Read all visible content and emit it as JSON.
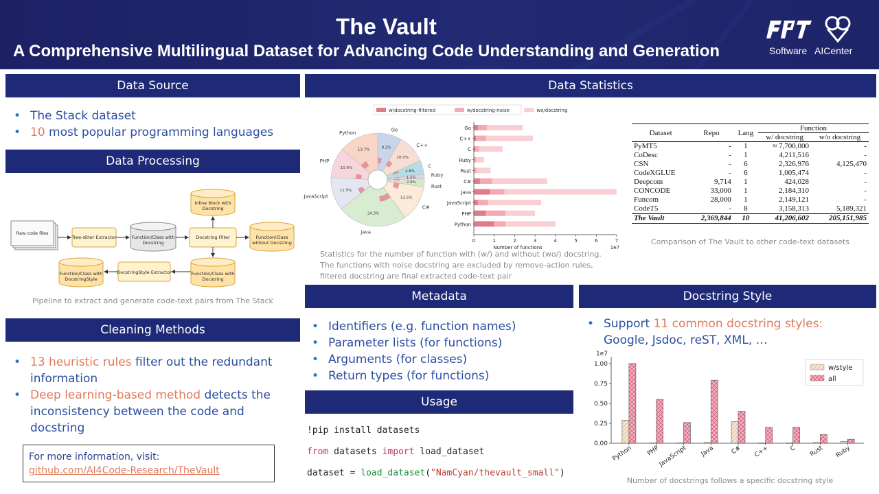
{
  "header": {
    "title": "The Vault",
    "subtitle": "A Comprehensive Multilingual Dataset for Advancing Code Understanding and Generation",
    "logo_fpt": "FPT",
    "logo_fpt_label": "Software",
    "logo_ai_label": "AICenter"
  },
  "data_source": {
    "title": "Data Source",
    "items": [
      {
        "pre": "",
        "hl": "",
        "text": "The Stack dataset"
      },
      {
        "pre": "",
        "hl": "10",
        "text": " most popular programming languages"
      }
    ]
  },
  "data_processing": {
    "title": "Data Processing",
    "nodes": {
      "raw": "Raw code files",
      "treesitter": "Tree-sitter Extractor",
      "func_doc": [
        "Function/Class with",
        "Docstring"
      ],
      "filter": "Docstring Filter",
      "inline": [
        "Inline block with",
        "Docstring"
      ],
      "without": [
        "Function/Class",
        "without Docstring"
      ],
      "func_doc2": [
        "Function/Class with",
        "Docstring"
      ],
      "style_extractor": "DocstringStyle Extractor",
      "func_style": [
        "Function/Class with",
        "DocstringStyle"
      ]
    },
    "caption": "Pipeline to extract and generate code-text pairs from The Stack"
  },
  "cleaning": {
    "title": "Cleaning Methods",
    "items": [
      {
        "hl": "13 heuristic rules",
        "text": " filter out the redundant information"
      },
      {
        "hl": "Deep learning-based method",
        "text": " detects the inconsistency between the code and docstring"
      }
    ]
  },
  "info": {
    "text": "For more information, visit:",
    "link": "github.com/AI4Code-Research/TheVault"
  },
  "data_statistics": {
    "title": "Data Statistics",
    "caption": [
      "Statistics for the number of function with (w/) and without (wo/) docstring.",
      "The functions with noise docstring are excluded by remove-action rules,",
      "filtered docstring are final extracted code-text pair"
    ],
    "table_caption": "Comparison of The Vault to other code-text datasets"
  },
  "chart_data": [
    {
      "type": "pie",
      "categories": [
        "Go",
        "C++",
        "C",
        "Ruby",
        "Rust",
        "C#",
        "Java",
        "JavaScript",
        "PHP",
        "Python"
      ],
      "values": [
        8.3,
        10.0,
        4.8,
        1.5,
        2.9,
        12.5,
        24.3,
        11.5,
        10.6,
        13.7
      ],
      "labels": [
        "8.3%",
        "10.0%",
        "4.8%",
        "1.5%",
        "2.9%",
        "12.5%",
        "24.3%",
        "11.5%",
        "10.6%",
        "13.7%"
      ],
      "colors": [
        "#c9d5ea",
        "#f6ded2",
        "#b7dce3",
        "#e0d2ea",
        "#d8e8c9",
        "#fcebd8",
        "#d8ecd1",
        "#e4e7f2",
        "#f6d6dc",
        "#f8d6c6"
      ]
    },
    {
      "type": "bar",
      "orientation": "horizontal",
      "stacked": true,
      "categories": [
        "Go",
        "C++",
        "C",
        "Ruby",
        "Rust",
        "C#",
        "Java",
        "JavaScript",
        "PHP",
        "Python"
      ],
      "series": [
        {
          "name": "w/docstring-filtered",
          "values": [
            0.2,
            0.1,
            0.07,
            0.03,
            0.02,
            0.3,
            0.8,
            0.2,
            0.6,
            1.0
          ],
          "color": "#e07c8a"
        },
        {
          "name": "w/docstring-noise",
          "values": [
            0.45,
            0.5,
            0.18,
            0.07,
            0.1,
            0.6,
            0.7,
            0.5,
            0.95,
            0.55
          ],
          "color": "#f3aab4"
        },
        {
          "name": "wo/docstring",
          "values": [
            1.75,
            2.3,
            1.15,
            0.4,
            0.7,
            2.7,
            5.5,
            2.6,
            1.45,
            2.45
          ],
          "color": "#f8cfd3"
        }
      ],
      "xlabel": "Number of functions",
      "x_scale_label": "1e7",
      "xlim": [
        0,
        7
      ],
      "xticks": [
        "0",
        "1",
        "2",
        "3",
        "4",
        "5",
        "6",
        "7"
      ],
      "legend": "top"
    },
    {
      "type": "bar",
      "categories": [
        "Python",
        "PHP",
        "JavaScript",
        "Java",
        "C#",
        "C++",
        "C",
        "Rust",
        "Ruby"
      ],
      "series": [
        {
          "name": "w/style",
          "values": [
            0.29,
            0.005,
            0.005,
            0.01,
            0.27,
            0.003,
            0.004,
            0.01,
            0.02
          ],
          "color": "#f6e3d2"
        },
        {
          "name": "all",
          "values": [
            1.0,
            0.55,
            0.26,
            0.79,
            0.4,
            0.2,
            0.2,
            0.11,
            0.05
          ],
          "color": "#f4b6c2"
        }
      ],
      "ylabel": "",
      "y_scale_label": "1e7",
      "ylim": [
        0,
        1.05
      ],
      "yticks": [
        "0.00",
        "0.25",
        "0.50",
        "0.75",
        "1.00"
      ],
      "legend": "top-right",
      "caption": "Number of docstrings follows a specific docstring style"
    }
  ],
  "table": {
    "headers": {
      "dataset": "Dataset",
      "repo": "Repo",
      "lang": "Lang",
      "function": "Function",
      "w_doc": "w/ docstring",
      "wo_doc": "w/o docstring"
    },
    "rows": [
      [
        "PyMT5",
        "-",
        "1",
        "≈ 7,700,000",
        "-"
      ],
      [
        "CoDesc",
        "-",
        "1",
        "4,211,516",
        "-"
      ],
      [
        "CSN",
        "-",
        "6",
        "2,326,976",
        "4,125,470"
      ],
      [
        "CodeXGLUE",
        "-",
        "6",
        "1,005,474",
        "-"
      ],
      [
        "Deepcom",
        "9,714",
        "1",
        "424,028",
        "-"
      ],
      [
        "CONCODE",
        "33,000",
        "1",
        "2,184,310",
        "-"
      ],
      [
        "Funcom",
        "28,000",
        "1",
        "2,149,121",
        "-"
      ],
      [
        "CodeT5",
        "-",
        "8",
        "3,158,313",
        "5,189,321"
      ]
    ],
    "last_row": [
      "The Vault",
      "2,369,844",
      "10",
      "41,206,602",
      "205,151,985"
    ]
  },
  "metadata": {
    "title": "Metadata",
    "items": [
      "Identifiers (e.g. function names)",
      "Parameter lists (for functions)",
      "Arguments (for classes)",
      "Return types (for functions)"
    ]
  },
  "docstring_style": {
    "title": "Docstring Style",
    "pre": "Support ",
    "hl": "11 common docstring styles:",
    "line2": "Google, Jsdoc, reST, XML, …"
  },
  "usage": {
    "title": "Usage",
    "line1": "!pip install datasets",
    "line2_kw1": "from",
    "line2_mod": " datasets ",
    "line2_kw2": "import",
    "line2_fn": " load_dataset",
    "line3_pre": "dataset = ",
    "line3_fn": "load_dataset",
    "line3_str": "\"NamCyan/thevault_small\"",
    "line3_open": "(",
    "line3_close": ")"
  }
}
